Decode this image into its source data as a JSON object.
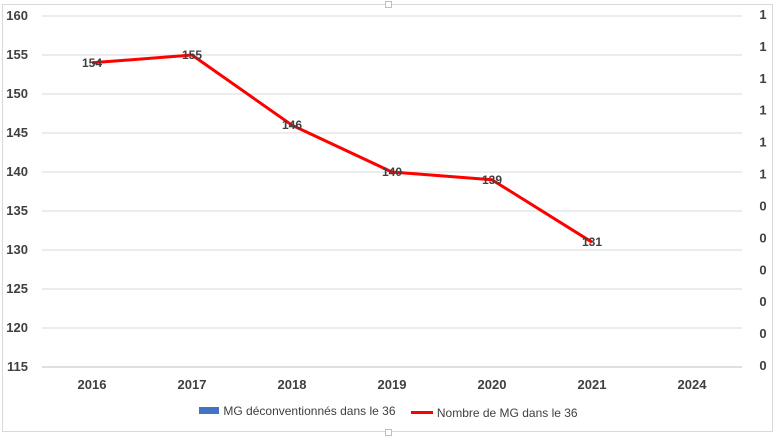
{
  "chart_data": {
    "type": "line",
    "categories": [
      "2016",
      "2017",
      "2018",
      "2019",
      "2020",
      "2021",
      "2024"
    ],
    "series": [
      {
        "name": "MG déconventionnés dans le 36",
        "type": "bar",
        "axis": "secondary",
        "color": "#4472c4",
        "values": [
          null,
          null,
          null,
          null,
          null,
          null,
          null
        ]
      },
      {
        "name": "Nombre de MG dans le 36",
        "type": "line",
        "axis": "primary",
        "color": "#ff0000",
        "values": [
          154,
          155,
          146,
          140,
          139,
          131,
          null
        ]
      }
    ],
    "y_primary": {
      "ylim": [
        115,
        160
      ],
      "ticks": [
        "115",
        "120",
        "125",
        "130",
        "135",
        "140",
        "145",
        "150",
        "155",
        "160"
      ]
    },
    "y_secondary": {
      "ticks": [
        "0",
        "0",
        "0",
        "0",
        "0",
        "0",
        "1",
        "1",
        "1",
        "1",
        "1",
        "1"
      ]
    },
    "data_labels": [
      "154",
      "155",
      "146",
      "140",
      "139",
      "131"
    ],
    "grid": true,
    "legend_position": "bottom",
    "title": "",
    "xlabel": "",
    "ylabel": ""
  }
}
